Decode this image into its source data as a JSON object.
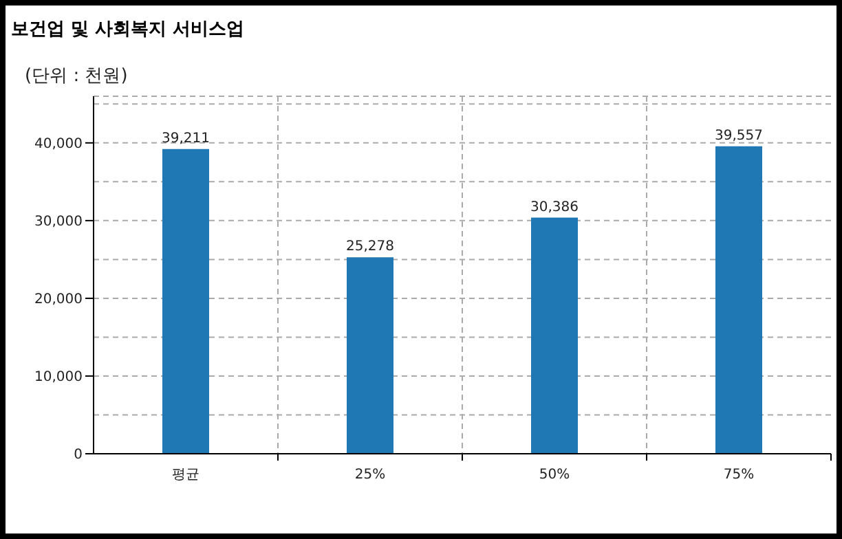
{
  "chart_data": {
    "type": "bar",
    "title": "보건업 및 사회복지 서비스업",
    "subtitle": "(단위 : 천원)",
    "categories": [
      "평균",
      "25%",
      "50%",
      "75%"
    ],
    "values": [
      39211,
      25278,
      30386,
      39557
    ],
    "color": "#1f77b4",
    "value_labels": [
      "39,211",
      "25,278",
      "30,386",
      "39,557"
    ],
    "ylim": [
      0,
      46000
    ],
    "yticks": [
      0,
      {
        "value": 5000,
        "label": null
      },
      {
        "value": 10000,
        "label": "10,000"
      },
      {
        "value": 15000,
        "label": null
      },
      {
        "value": 20000,
        "label": "20,000"
      },
      {
        "value": 25000,
        "label": null
      },
      {
        "value": 30000,
        "label": "30,000"
      },
      {
        "value": 35000,
        "label": null
      },
      {
        "value": 40000,
        "label": "40,000"
      },
      {
        "value": 45000,
        "label": null
      }
    ],
    "grid": true
  }
}
